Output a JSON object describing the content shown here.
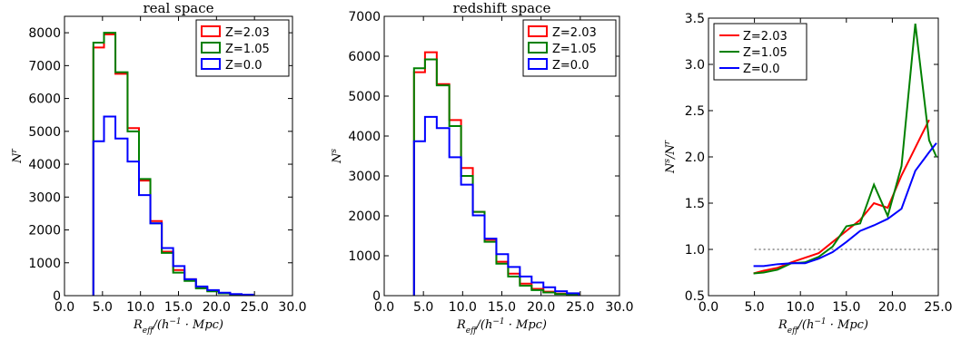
{
  "chart_data": [
    {
      "type": "histogram",
      "title": "real   space",
      "xlabel": "R_eff/(h^-1 · Mpc)",
      "ylabel": "N^r",
      "xlim": [
        0,
        30
      ],
      "ylim": [
        0,
        8500
      ],
      "xticks": [
        "0.0",
        "5.0",
        "10.0",
        "15.0",
        "20.0",
        "25.0",
        "30.0"
      ],
      "yticks": [
        "0",
        "1000",
        "2000",
        "3000",
        "4000",
        "5000",
        "6000",
        "7000",
        "8000"
      ],
      "xtick_values": [
        0,
        5,
        10,
        15,
        20,
        25,
        30
      ],
      "ytick_values": [
        0,
        1000,
        2000,
        3000,
        4000,
        5000,
        6000,
        7000,
        8000
      ],
      "legend_position": "top-right",
      "bin_edges": [
        3.8,
        5.2,
        6.7,
        8.3,
        9.8,
        11.3,
        12.8,
        14.3,
        15.8,
        17.3,
        18.8,
        20.3,
        21.8,
        23.3,
        24.8
      ],
      "series": [
        {
          "name": "Z=2.03",
          "color": "#ff0000",
          "values": [
            7550,
            7950,
            6750,
            5100,
            3500,
            2270,
            1340,
            780,
            500,
            250,
            150,
            80,
            40,
            20
          ]
        },
        {
          "name": "Z=1.05",
          "color": "#008000",
          "values": [
            7700,
            8000,
            6800,
            5000,
            3550,
            2200,
            1300,
            700,
            450,
            220,
            130,
            70,
            30,
            15
          ]
        },
        {
          "name": "Z=0.0",
          "color": "#0000ff",
          "values": [
            4700,
            5450,
            4780,
            4080,
            3060,
            2200,
            1450,
            900,
            500,
            280,
            170,
            90,
            50,
            30
          ]
        }
      ]
    },
    {
      "type": "histogram",
      "title": "redshift   space",
      "xlabel": "R_eff/(h^-1 · Mpc)",
      "ylabel": "N^s",
      "xlim": [
        0,
        30
      ],
      "ylim": [
        0,
        7000
      ],
      "xticks": [
        "0.0",
        "5.0",
        "10.0",
        "15.0",
        "20.0",
        "25.0",
        "30.0"
      ],
      "yticks": [
        "0",
        "1000",
        "2000",
        "3000",
        "4000",
        "5000",
        "6000",
        "7000"
      ],
      "xtick_values": [
        0,
        5,
        10,
        15,
        20,
        25,
        30
      ],
      "ytick_values": [
        0,
        1000,
        2000,
        3000,
        4000,
        5000,
        6000,
        7000
      ],
      "legend_position": "top-right",
      "bin_edges": [
        3.8,
        5.2,
        6.7,
        8.3,
        9.8,
        11.3,
        12.8,
        14.3,
        15.8,
        17.3,
        18.8,
        20.3,
        21.8,
        23.3,
        24.8
      ],
      "series": [
        {
          "name": "Z=2.03",
          "color": "#ff0000",
          "values": [
            5600,
            6100,
            5300,
            4400,
            3200,
            2100,
            1400,
            850,
            550,
            300,
            170,
            100,
            50,
            25
          ]
        },
        {
          "name": "Z=1.05",
          "color": "#008000",
          "values": [
            5700,
            5920,
            5270,
            4250,
            3000,
            2100,
            1350,
            800,
            480,
            250,
            140,
            80,
            40,
            20
          ]
        },
        {
          "name": "Z=0.0",
          "color": "#0000ff",
          "values": [
            3870,
            4480,
            4200,
            3470,
            2780,
            2010,
            1430,
            1040,
            720,
            480,
            330,
            210,
            110,
            60
          ]
        }
      ]
    },
    {
      "type": "line",
      "title": "",
      "xlabel": "R_eff/(h^-1 · Mpc)",
      "ylabel": "N^s/N^r",
      "xlim": [
        0,
        25
      ],
      "ylim": [
        0.5,
        3.5
      ],
      "xticks": [
        "0.0",
        "5.0",
        "10.0",
        "15.0",
        "20.0",
        "25.0"
      ],
      "yticks": [
        "0.5",
        "1.0",
        "1.5",
        "2.0",
        "2.5",
        "3.0",
        "3.5"
      ],
      "xtick_values": [
        0,
        5,
        10,
        15,
        20,
        25
      ],
      "ytick_values": [
        0.5,
        1.0,
        1.5,
        2.0,
        2.5,
        3.0,
        3.5
      ],
      "legend_position": "top-left",
      "reference_line": 1.0,
      "reference_xrange": [
        5,
        25
      ],
      "series": [
        {
          "name": "Z=2.03",
          "color": "#ff0000",
          "x": [
            4.9,
            6.0,
            7.5,
            9.0,
            10.5,
            12.0,
            13.5,
            15.0,
            16.5,
            18.0,
            19.5,
            21.0,
            22.5,
            24.0
          ],
          "y": [
            0.74,
            0.77,
            0.8,
            0.86,
            0.91,
            0.96,
            1.08,
            1.2,
            1.32,
            1.5,
            1.45,
            1.8,
            2.1,
            2.4
          ]
        },
        {
          "name": "Z=1.05",
          "color": "#008000",
          "x": [
            4.9,
            6.0,
            7.5,
            9.0,
            10.5,
            12.0,
            13.5,
            15.0,
            16.5,
            18.0,
            19.5,
            21.0,
            22.5,
            24.0,
            24.8
          ],
          "y": [
            0.74,
            0.75,
            0.78,
            0.85,
            0.86,
            0.92,
            1.03,
            1.25,
            1.28,
            1.7,
            1.36,
            1.9,
            3.44,
            2.18,
            2.0
          ]
        },
        {
          "name": "Z=0.0",
          "color": "#0000ff",
          "x": [
            4.9,
            6.0,
            7.5,
            9.0,
            10.5,
            12.0,
            13.5,
            15.0,
            16.5,
            18.0,
            19.5,
            21.0,
            22.5,
            24.0,
            24.8
          ],
          "y": [
            0.82,
            0.82,
            0.84,
            0.85,
            0.85,
            0.9,
            0.97,
            1.08,
            1.2,
            1.26,
            1.33,
            1.44,
            1.85,
            2.05,
            2.15
          ]
        }
      ]
    }
  ]
}
